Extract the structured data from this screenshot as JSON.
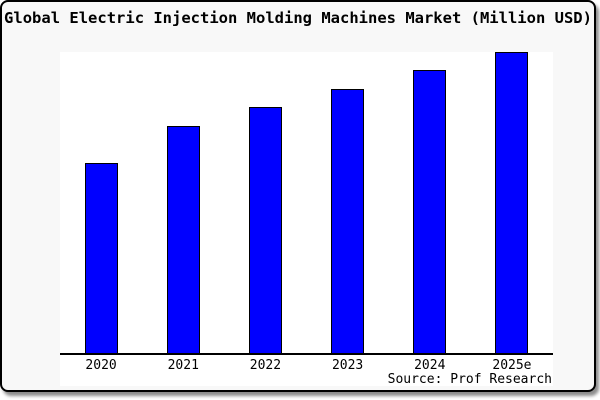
{
  "title": "Global Electric Injection Molding Machines Market (Million USD)",
  "source_credit": "Source: Prof Research",
  "colors": {
    "bar_fill": "#0000FF",
    "bar_border": "#000000",
    "canvas_background": "#F8F8F8",
    "plot_background": "#FFFFFF",
    "axis": "#000000",
    "text": "#000000"
  },
  "chart_data": {
    "type": "bar",
    "title": "Global Electric Injection Molding Machines Market (Million USD)",
    "categories": [
      "2020",
      "2021",
      "2022",
      "2023",
      "2024",
      "2025e"
    ],
    "values_pct_of_max": [
      63,
      75.3,
      81.7,
      87.7,
      94,
      100
    ],
    "xlabel": "",
    "ylabel": "",
    "y_axis_tick_labels_visible": false,
    "grid": false,
    "legend_position": "none",
    "annotation": "Source: Prof Research"
  }
}
